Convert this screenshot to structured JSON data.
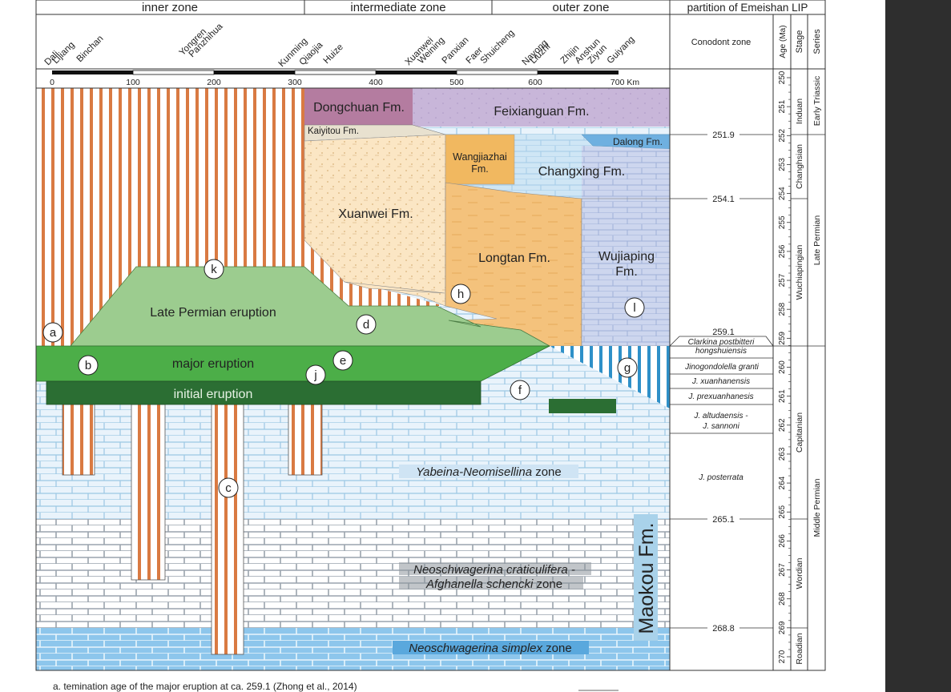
{
  "header": {
    "zone_inner": "inner zone",
    "zone_intermediate": "intermediate zone",
    "zone_outer": "outer zone",
    "partition": "partition of Emeishan LIP",
    "conodont_zone": "Conodont zone",
    "age_col": "Age (Ma)",
    "stage_col": "Stage",
    "series_col": "Series"
  },
  "localities": [
    "Dali",
    "Lijiang",
    "Binchan",
    "Yongren",
    "Panzhihua",
    "Kunming",
    "Qiaojia",
    "Huize",
    "Xuanwei",
    "Weining",
    "Panxian",
    "Faer",
    "Shuicheng",
    "Nayong",
    "Liuzhi",
    "Zhijin",
    "Anshun",
    "Ziyun",
    "Guiyang"
  ],
  "scale": {
    "ticks": [
      "0",
      "100",
      "200",
      "300",
      "400",
      "500",
      "600",
      "700 Km"
    ]
  },
  "formations": {
    "dongchuan": "Dongchuan Fm.",
    "feixianguan": "Feixianguan Fm.",
    "kaiyitou": "Kaiyitou Fm.",
    "dalong": "Dalong Fm.",
    "wangjiazhai_1": "Wangjiazhai",
    "wangjiazhai_2": "Fm.",
    "changxing": "Changxing Fm.",
    "xuanwei": "Xuanwei Fm.",
    "longtan": "Longtan Fm.",
    "wujiaping_1": "Wujiaping",
    "wujiaping_2": "Fm.",
    "maokou": "Maokou Fm."
  },
  "eruptions": {
    "late": "Late Permian eruption",
    "major": "major eruption",
    "initial": "initial eruption"
  },
  "zones": {
    "yabeina_italic": "Yabeina-Neomisellina",
    "yabeina_rest": " zone",
    "neoschwagerina_1": "Neoschwagerina craticulifera -",
    "neoschwagerina_2_italic": "Afghanella schencki",
    "neoschwagerina_2_rest": " zone",
    "simplex_italic": "Neoschwagerina simplex",
    "simplex_rest": " zone"
  },
  "markers": [
    "a",
    "b",
    "c",
    "d",
    "e",
    "f",
    "g",
    "h",
    "j",
    "k",
    "l"
  ],
  "age_markers": [
    "251.9",
    "254.1",
    "259.1",
    "265.1",
    "268.8"
  ],
  "ages": [
    "250",
    "251",
    "252",
    "253",
    "254",
    "255",
    "256",
    "257",
    "258",
    "259",
    "260",
    "261",
    "262",
    "263",
    "264",
    "265",
    "266",
    "267",
    "268",
    "269",
    "270"
  ],
  "conodonts": {
    "c1a": "Clarkina postbitteri",
    "c1b": "hongshuiensis",
    "c2": "Jinogondolella granti",
    "c3": "J. xuanhanensis",
    "c4": "J. prexuanhanesis",
    "c5a": "J. altudaensis -",
    "c5b": "J. sannoni",
    "c6": "J. posterrata"
  },
  "stages": {
    "induan": "Induan",
    "changhsian": "Changhsian",
    "wuchiapingian": "Wuchiapingian",
    "capitanian": "Capitanian",
    "wordian": "Wordian",
    "roadian": "Roadian"
  },
  "series": {
    "early_triassic": "Early Triassic",
    "late_permian": "Late Permian",
    "middle_permian": "Middle Permian"
  },
  "footnote": "a. temination age of the major eruption at ca. 259.1 (Zhong et al., 2014)",
  "colors": {
    "background": "#ffffff",
    "sidebar": "#2e2e2e",
    "late_eruption": "#9ccc8f",
    "major_eruption": "#4cae48",
    "initial_eruption": "#2b6e33",
    "dongchuan": "#b47ca0",
    "feixianguan": "#c8b6d9",
    "longtan": "#f4c27c",
    "changxing": "#cfe6f5",
    "wujiaping": "#cdd6ee",
    "dalong": "#6fb0e0",
    "wangjiazhai": "#f1b860",
    "xuanwei": "#fbe6c4",
    "vertical_stripe": "#d97a42",
    "maokou_label_bg": "#a9d2ea",
    "simplex_bg": "#8dc6ec",
    "yabeina_bg": "#e9f3fb"
  }
}
